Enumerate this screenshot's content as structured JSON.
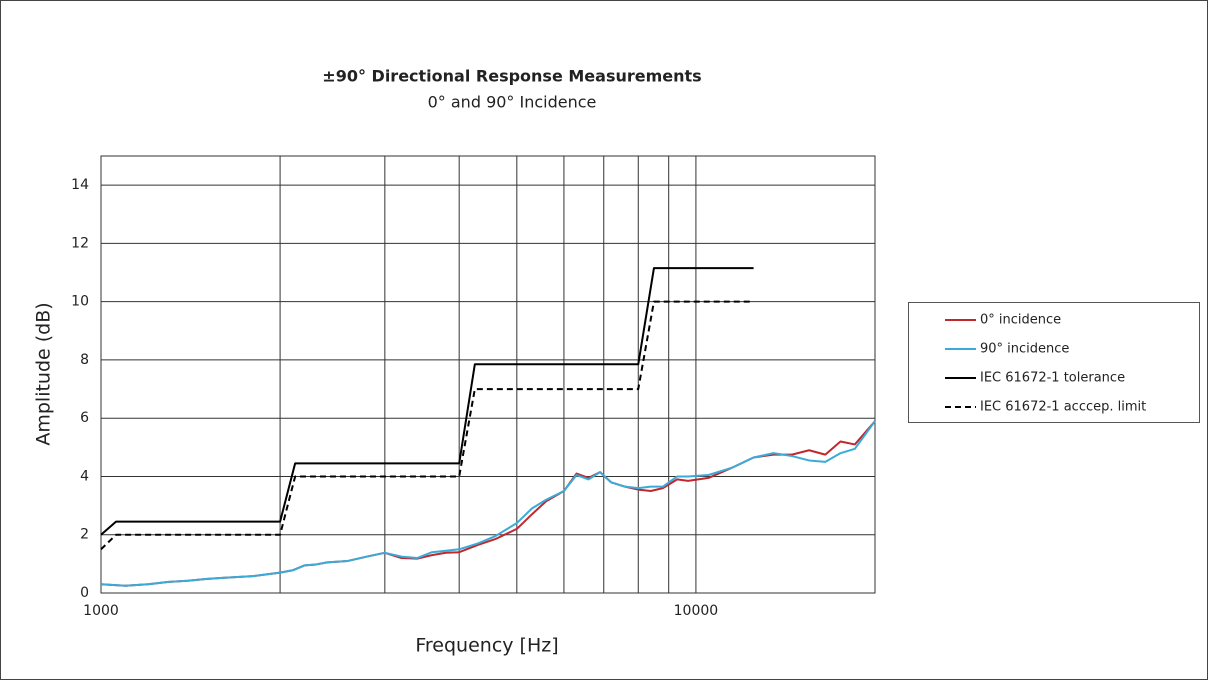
{
  "chart_data": {
    "type": "line",
    "title": "±90° Directional Response Measurements",
    "subtitle": "0° and 90° Incidence",
    "x_label": "Frequency [Hz]",
    "y_label": "Amplitude (dB)",
    "x_scale": "log",
    "xlim": [
      1000,
      20000
    ],
    "xticks": [
      1000,
      10000
    ],
    "x_minor_ticks": [
      2000,
      3000,
      4000,
      5000,
      6000,
      7000,
      8000,
      9000
    ],
    "ylim": [
      0,
      15
    ],
    "yticks": [
      0,
      2,
      4,
      6,
      8,
      10,
      12,
      14
    ],
    "grid": true,
    "legend": "right",
    "series": [
      {
        "name": "0° incidence",
        "color": "#c0282d",
        "line_style": "solid",
        "x": [
          1000,
          1100,
          1200,
          1300,
          1400,
          1500,
          1600,
          1800,
          2000,
          2100,
          2200,
          2300,
          2400,
          2600,
          2800,
          3000,
          3200,
          3400,
          3600,
          3800,
          4000,
          4300,
          4600,
          5000,
          5300,
          5600,
          6000,
          6300,
          6600,
          6900,
          7200,
          7600,
          8000,
          8400,
          8800,
          9300,
          9700,
          10500,
          11500,
          12500,
          13500,
          14500,
          15500,
          16500,
          17500,
          18500,
          20000
        ],
        "values": [
          0.3,
          0.25,
          0.3,
          0.38,
          0.42,
          0.48,
          0.52,
          0.58,
          0.7,
          0.78,
          0.95,
          0.98,
          1.05,
          1.1,
          1.25,
          1.38,
          1.2,
          1.18,
          1.3,
          1.38,
          1.4,
          1.65,
          1.85,
          2.2,
          2.7,
          3.15,
          3.5,
          4.1,
          3.95,
          4.15,
          3.8,
          3.65,
          3.55,
          3.5,
          3.6,
          3.9,
          3.85,
          3.95,
          4.3,
          4.65,
          4.75,
          4.75,
          4.9,
          4.75,
          5.2,
          5.1,
          5.9
        ]
      },
      {
        "name": "90° incidence",
        "color": "#3aabd8",
        "line_style": "solid",
        "x": [
          1000,
          1100,
          1200,
          1300,
          1400,
          1500,
          1600,
          1800,
          2000,
          2100,
          2200,
          2300,
          2400,
          2600,
          2800,
          3000,
          3200,
          3400,
          3600,
          3800,
          4000,
          4300,
          4600,
          5000,
          5300,
          5600,
          6000,
          6300,
          6600,
          6900,
          7200,
          7600,
          8000,
          8400,
          8800,
          9300,
          9700,
          10500,
          11500,
          12500,
          13500,
          14500,
          15500,
          16500,
          17500,
          18500,
          20000
        ],
        "values": [
          0.3,
          0.25,
          0.3,
          0.38,
          0.42,
          0.48,
          0.52,
          0.58,
          0.7,
          0.78,
          0.95,
          0.98,
          1.05,
          1.1,
          1.25,
          1.38,
          1.25,
          1.2,
          1.4,
          1.45,
          1.5,
          1.7,
          1.95,
          2.4,
          2.9,
          3.2,
          3.5,
          4.05,
          3.9,
          4.15,
          3.8,
          3.65,
          3.6,
          3.65,
          3.65,
          4.0,
          4.0,
          4.05,
          4.3,
          4.65,
          4.8,
          4.7,
          4.55,
          4.5,
          4.8,
          4.95,
          5.9
        ]
      },
      {
        "name": "IEC 61672-1 tolerance",
        "color": "#000000",
        "line_style": "solid",
        "x": [
          1000,
          1060,
          2000,
          2120,
          4000,
          4250,
          8000,
          8500,
          12500
        ],
        "values": [
          2.0,
          2.45,
          2.45,
          4.45,
          4.45,
          7.85,
          7.85,
          11.15,
          11.15
        ]
      },
      {
        "name": "IEC 61672-1 acccep. limit",
        "color": "#000000",
        "line_style": "dashed",
        "x": [
          1000,
          1060,
          2000,
          2120,
          4000,
          4250,
          8000,
          8500,
          12500
        ],
        "values": [
          1.5,
          2,
          2,
          4,
          4,
          7,
          7,
          10,
          10
        ]
      }
    ]
  }
}
